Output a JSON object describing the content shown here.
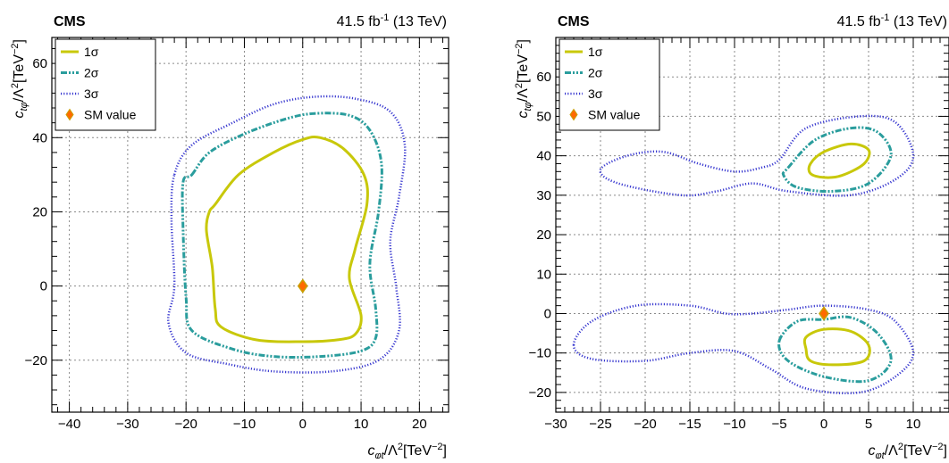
{
  "colors": {
    "sigma1": "#c8c80a",
    "sigma2": "#2a9d9d",
    "sigma3": "#3a3ad0",
    "sm_fill": "#ff6a00",
    "sm_edge": "#c8a000",
    "grid": "#8a8a8a"
  },
  "chart_data": [
    {
      "type": "contour",
      "experiment": "CMS",
      "luminosity": "41.5 fb",
      "lumi_exp": "-1",
      "energy": "(13 TeV)",
      "xlabel_main": "c",
      "xlabel_sub": "φt",
      "xlabel_rest": "/Λ",
      "xlabel_sq": "2",
      "xlabel_unit": "[TeV",
      "xlabel_unit_exp": "−2",
      "xlabel_close": "]",
      "ylabel_main": "c",
      "ylabel_sub": "tφ",
      "ylabel_rest": "/Λ",
      "ylabel_sq": "2",
      "ylabel_unit": "[TeV",
      "ylabel_unit_exp": "−2",
      "ylabel_close": "]",
      "xlim": [
        -43,
        25
      ],
      "ylim": [
        -34,
        67
      ],
      "xticks": [
        -40,
        -30,
        -20,
        -10,
        0,
        10,
        20
      ],
      "xtick_labels": [
        "−40",
        "−30",
        "−20",
        "−10",
        "0",
        "10",
        "20"
      ],
      "yticks": [
        -20,
        0,
        20,
        40,
        60
      ],
      "ytick_labels": [
        "−20",
        "0",
        "20",
        "40",
        "60"
      ],
      "grid": true,
      "legend_position": "top-left",
      "legend": [
        "1σ",
        "2σ",
        "3σ",
        "SM value"
      ],
      "sm_point": [
        0,
        0
      ],
      "contours": [
        {
          "level": "1σ",
          "regions": [
            [
              [
                -15,
                22
              ],
              [
                -11,
                30
              ],
              [
                -5,
                36
              ],
              [
                0,
                39.5
              ],
              [
                3,
                40
              ],
              [
                7,
                37
              ],
              [
                10.5,
                30
              ],
              [
                11,
                22
              ],
              [
                9,
                10
              ],
              [
                8,
                2
              ],
              [
                10,
                -8
              ],
              [
                9,
                -13
              ],
              [
                6,
                -14.5
              ],
              [
                0,
                -15
              ],
              [
                -8,
                -14.5
              ],
              [
                -14,
                -11
              ],
              [
                -15,
                -6
              ],
              [
                -15.5,
                5
              ],
              [
                -16.5,
                15
              ],
              [
                -16,
                20
              ]
            ]
          ]
        },
        {
          "level": "2σ",
          "regions": [
            [
              [
                -19,
                30
              ],
              [
                -16,
                36
              ],
              [
                -10,
                41
              ],
              [
                -3,
                45
              ],
              [
                2,
                46.5
              ],
              [
                8,
                46
              ],
              [
                11.5,
                42
              ],
              [
                13.5,
                33
              ],
              [
                13,
                20
              ],
              [
                11.5,
                6
              ],
              [
                12.5,
                -6
              ],
              [
                12.5,
                -14
              ],
              [
                10,
                -17.5
              ],
              [
                3,
                -19
              ],
              [
                -5,
                -19
              ],
              [
                -12,
                -17
              ],
              [
                -19,
                -12
              ],
              [
                -20,
                -3
              ],
              [
                -20.5,
                15
              ],
              [
                -20.5,
                28
              ]
            ]
          ]
        },
        {
          "level": "3σ",
          "regions": [
            [
              [
                -22,
                30
              ],
              [
                -19,
                38
              ],
              [
                -12,
                44
              ],
              [
                -5,
                49
              ],
              [
                2,
                51
              ],
              [
                9,
                50.5
              ],
              [
                15,
                47
              ],
              [
                17.5,
                38
              ],
              [
                16.5,
                24
              ],
              [
                15,
                12
              ],
              [
                16,
                0
              ],
              [
                16.5,
                -12
              ],
              [
                13,
                -20
              ],
              [
                5,
                -23
              ],
              [
                -5,
                -23
              ],
              [
                -13,
                -21
              ],
              [
                -20,
                -18
              ],
              [
                -23,
                -10
              ],
              [
                -22,
                0
              ],
              [
                -22.5,
                18
              ]
            ]
          ]
        }
      ]
    },
    {
      "type": "contour",
      "experiment": "CMS",
      "luminosity": "41.5 fb",
      "lumi_exp": "-1",
      "energy": "(13 TeV)",
      "xlabel_main": "c",
      "xlabel_sub": "φt",
      "xlabel_rest": "/Λ",
      "xlabel_sq": "2",
      "xlabel_unit": "[TeV",
      "xlabel_unit_exp": "−2",
      "xlabel_close": "]",
      "ylabel_main": "c",
      "ylabel_sub": "tφ",
      "ylabel_rest": "/Λ",
      "ylabel_sq": "2",
      "ylabel_unit": "[TeV",
      "ylabel_unit_exp": "−2",
      "ylabel_close": "]",
      "xlim": [
        -30,
        14
      ],
      "ylim": [
        -25,
        70
      ],
      "xticks": [
        -30,
        -25,
        -20,
        -15,
        -10,
        -5,
        0,
        5,
        10
      ],
      "xtick_labels": [
        "−30",
        "−25",
        "−20",
        "−15",
        "−10",
        "−5",
        "0",
        "5",
        "10"
      ],
      "yticks": [
        -20,
        -10,
        0,
        10,
        20,
        30,
        40,
        50,
        60
      ],
      "ytick_labels": [
        "−20",
        "−10",
        "0",
        "10",
        "20",
        "30",
        "40",
        "50",
        "60"
      ],
      "grid": true,
      "legend_position": "top-left",
      "legend": [
        "1σ",
        "2σ",
        "3σ",
        "SM value"
      ],
      "sm_point": [
        0,
        0
      ],
      "contours": [
        {
          "level": "1σ",
          "regions": [
            [
              [
                -1.5,
                38
              ],
              [
                0,
                41
              ],
              [
                3,
                43
              ],
              [
                5,
                41.5
              ],
              [
                4.5,
                38
              ],
              [
                2,
                35
              ],
              [
                0,
                34.5
              ],
              [
                -1.5,
                35.5
              ]
            ],
            [
              [
                -2,
                -6
              ],
              [
                0,
                -4
              ],
              [
                3,
                -4.5
              ],
              [
                5,
                -8
              ],
              [
                4.5,
                -12
              ],
              [
                1,
                -13
              ],
              [
                -1.5,
                -12
              ],
              [
                -2,
                -9
              ]
            ]
          ]
        },
        {
          "level": "2σ",
          "regions": [
            [
              [
                -4,
                37
              ],
              [
                -1,
                44
              ],
              [
                3,
                47
              ],
              [
                6,
                46
              ],
              [
                7.5,
                40
              ],
              [
                5,
                33
              ],
              [
                1,
                31
              ],
              [
                -3,
                32
              ],
              [
                -4.5,
                35
              ]
            ],
            [
              [
                -5,
                -7
              ],
              [
                -3,
                -2
              ],
              [
                0,
                -1.5
              ],
              [
                3,
                -1
              ],
              [
                6,
                -5
              ],
              [
                7.5,
                -12
              ],
              [
                5,
                -17
              ],
              [
                0,
                -16
              ],
              [
                -4,
                -12
              ]
            ]
          ]
        },
        {
          "level": "3σ",
          "regions": [
            [
              [
                -5,
                39
              ],
              [
                -2,
                47
              ],
              [
                4,
                50
              ],
              [
                8,
                48.5
              ],
              [
                10,
                40
              ],
              [
                8,
                34
              ],
              [
                3,
                30
              ],
              [
                -4,
                31
              ],
              [
                -8,
                33
              ],
              [
                -12,
                31
              ],
              [
                -16,
                30
              ],
              [
                -23,
                33
              ],
              [
                -25,
                36.5
              ],
              [
                -22,
                40
              ],
              [
                -18,
                41
              ],
              [
                -14,
                38
              ],
              [
                -10,
                36
              ],
              [
                -7,
                37
              ]
            ],
            [
              [
                -28,
                -8
              ],
              [
                -26,
                -2
              ],
              [
                -21,
                2
              ],
              [
                -15,
                2
              ],
              [
                -11,
                0
              ],
              [
                -8,
                0
              ],
              [
                -4,
                1
              ],
              [
                0,
                2
              ],
              [
                5,
                1
              ],
              [
                8,
                -2
              ],
              [
                10,
                -10
              ],
              [
                8,
                -16
              ],
              [
                4,
                -20
              ],
              [
                -2,
                -19
              ],
              [
                -6,
                -14
              ],
              [
                -10,
                -9.5
              ],
              [
                -15,
                -10
              ],
              [
                -20,
                -12
              ],
              [
                -26,
                -11.5
              ]
            ]
          ]
        }
      ]
    }
  ]
}
